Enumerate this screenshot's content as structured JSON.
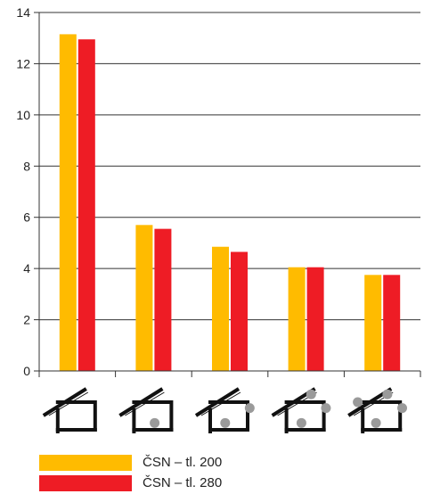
{
  "chart_data": {
    "type": "bar",
    "categories": [
      "",
      "",
      "",
      "",
      ""
    ],
    "series": [
      {
        "name": "ČSN – tl. 200",
        "color": "#FFBB00",
        "values": [
          13.15,
          5.7,
          4.85,
          4.05,
          3.75
        ]
      },
      {
        "name": "ČSN – tl. 280",
        "color": "#EE1C25",
        "values": [
          12.95,
          5.55,
          4.65,
          4.05,
          3.75
        ]
      }
    ],
    "title": "",
    "xlabel": "",
    "ylabel": "",
    "ylim": [
      0,
      14
    ],
    "yticks": [
      "0",
      "2",
      "4",
      "6",
      "8",
      "10",
      "12",
      "14"
    ],
    "grid": true,
    "legend_position": "bottom-left",
    "category_icons": [
      "roof-section-icon-0-points",
      "roof-section-icon-1-point",
      "roof-section-icon-2-points",
      "roof-section-icon-3-points",
      "roof-section-icon-4-points"
    ]
  }
}
